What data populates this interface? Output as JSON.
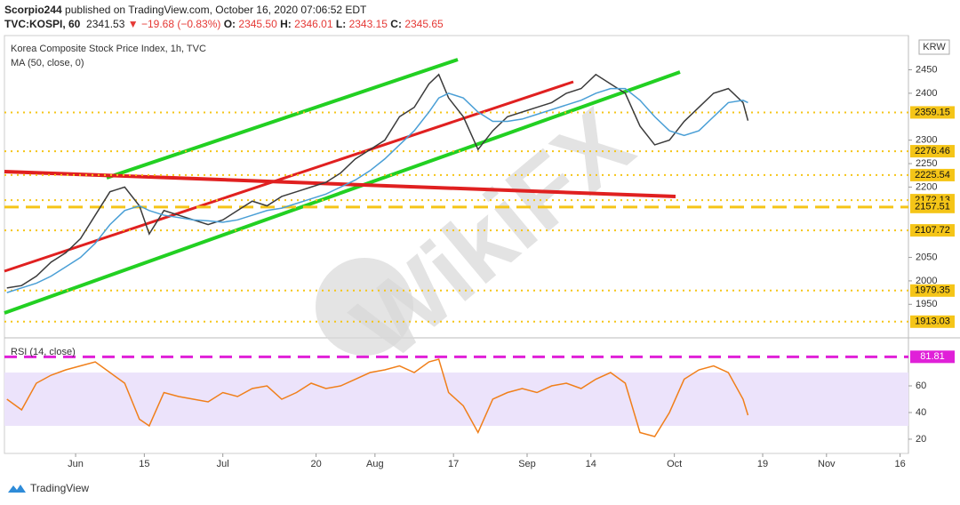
{
  "header": {
    "author": "Scorpio244",
    "published": "published on TradingView.com, October 16, 2020 07:06:52 EDT",
    "symbol": "TVC:KOSPI, 60",
    "last": "2341.53",
    "change": "▼ −19.68 (−0.83%)",
    "ohlc": [
      [
        "O:",
        "2345.50"
      ],
      [
        "H:",
        "2346.01"
      ],
      [
        "L:",
        "2343.15"
      ],
      [
        "C:",
        "2345.65"
      ]
    ]
  },
  "footer": "TradingView",
  "chart_data": [
    {
      "type": "line",
      "title": "Korea Composite Stock Price Index, 1h, TVC",
      "subtitle": "MA (50, close, 0)",
      "currency": "KRW",
      "watermark": "WikiFX",
      "x": [
        139,
        142,
        145,
        148,
        151,
        154,
        157,
        160,
        163,
        166,
        168,
        171,
        174,
        177,
        180,
        183,
        186,
        189,
        192,
        195,
        198,
        201,
        204,
        207,
        210,
        213,
        216,
        219,
        222,
        225,
        227,
        229,
        232,
        235,
        238,
        241,
        244,
        247,
        250,
        253,
        256,
        259,
        262,
        265,
        268,
        271,
        274,
        277,
        280,
        283,
        286,
        289,
        290
      ],
      "series": [
        {
          "name": "KOSPI",
          "color": "#3b3b3b",
          "values": [
            1985,
            1990,
            2010,
            2040,
            2060,
            2090,
            2140,
            2190,
            2200,
            2160,
            2100,
            2150,
            2140,
            2130,
            2120,
            2130,
            2150,
            2170,
            2160,
            2180,
            2190,
            2200,
            2210,
            2230,
            2260,
            2280,
            2300,
            2350,
            2370,
            2420,
            2440,
            2390,
            2350,
            2280,
            2320,
            2350,
            2360,
            2370,
            2380,
            2400,
            2410,
            2440,
            2420,
            2400,
            2330,
            2290,
            2300,
            2340,
            2370,
            2400,
            2410,
            2380,
            2341.53
          ]
        },
        {
          "name": "MA",
          "color": "#4a9fd6",
          "values": [
            1975,
            1985,
            1995,
            2010,
            2030,
            2050,
            2080,
            2120,
            2150,
            2160,
            2150,
            2140,
            2135,
            2130,
            2128,
            2125,
            2130,
            2140,
            2150,
            2155,
            2165,
            2175,
            2185,
            2200,
            2215,
            2235,
            2260,
            2290,
            2320,
            2360,
            2390,
            2400,
            2390,
            2360,
            2340,
            2340,
            2345,
            2355,
            2365,
            2375,
            2385,
            2400,
            2410,
            2410,
            2385,
            2350,
            2320,
            2310,
            2320,
            2350,
            2380,
            2385,
            2380
          ]
        }
      ],
      "xlim": [
        138.5,
        322.7
      ],
      "ylim": [
        1888,
        2523
      ],
      "yticks": [
        1950,
        2000,
        2050,
        2200,
        2250,
        2300,
        2400,
        2450
      ],
      "levels": [
        2359.15,
        2276.46,
        2225.54,
        2172.13,
        2107.72,
        1979.35,
        1913.03
      ],
      "key_level": 2157.51,
      "level_color": "#f5c518"
    },
    {
      "type": "line",
      "title": "RSI (14, close)",
      "x": [
        139,
        142,
        145,
        148,
        151,
        154,
        157,
        160,
        163,
        166,
        168,
        171,
        174,
        177,
        180,
        183,
        186,
        189,
        192,
        195,
        198,
        201,
        204,
        207,
        210,
        213,
        216,
        219,
        222,
        225,
        227,
        229,
        232,
        235,
        238,
        241,
        244,
        247,
        250,
        253,
        256,
        259,
        262,
        265,
        268,
        271,
        274,
        277,
        280,
        283,
        286,
        289,
        290
      ],
      "series": [
        {
          "name": "RSI",
          "color": "#f07f1a",
          "values": [
            50,
            42,
            62,
            68,
            72,
            75,
            78,
            70,
            62,
            35,
            30,
            55,
            52,
            50,
            48,
            55,
            52,
            58,
            60,
            50,
            55,
            62,
            58,
            60,
            65,
            70,
            72,
            75,
            70,
            78,
            80,
            55,
            45,
            25,
            50,
            55,
            58,
            55,
            60,
            62,
            58,
            65,
            70,
            62,
            25,
            22,
            40,
            65,
            72,
            75,
            70,
            50,
            38
          ]
        }
      ],
      "xlim": [
        138.5,
        322.7
      ],
      "ylim": [
        9.3,
        92.7
      ],
      "yticks": [
        20,
        40,
        60
      ],
      "band": [
        30,
        70
      ],
      "band_color": "#ece3fb",
      "level": 81.81,
      "level_color": "#e020d8",
      "xticks": [
        {
          "value": 153,
          "label": "Jun"
        },
        {
          "value": 167,
          "label": "15"
        },
        {
          "value": 183,
          "label": "Jul"
        },
        {
          "value": 202,
          "label": "20"
        },
        {
          "value": 214,
          "label": "Aug"
        },
        {
          "value": 230,
          "label": "17"
        },
        {
          "value": 245,
          "label": "Sep"
        },
        {
          "value": 258,
          "label": "14"
        },
        {
          "value": 275,
          "label": "Oct"
        },
        {
          "value": 293,
          "label": "19"
        },
        {
          "value": 306,
          "label": "Nov"
        },
        {
          "value": 321,
          "label": "16"
        }
      ]
    }
  ]
}
